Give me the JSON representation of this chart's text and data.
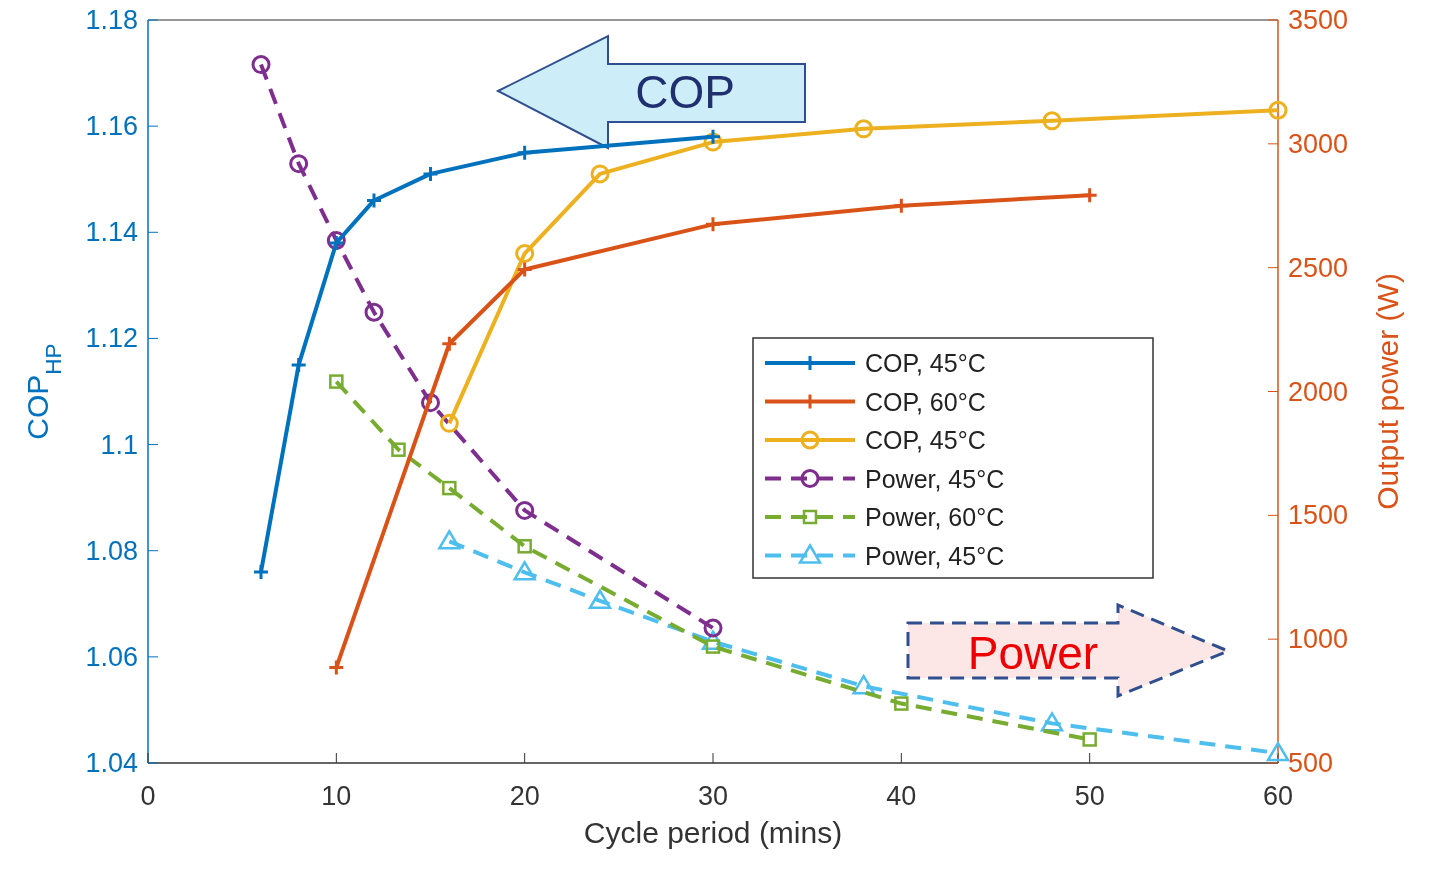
{
  "chart_data": {
    "type": "line",
    "xlabel": "Cycle period (mins)",
    "ylabel": "COP$_{HP}$",
    "y2label": "Output power (W)",
    "xlim": [
      0,
      60
    ],
    "xticks": [
      0,
      10,
      20,
      30,
      40,
      50,
      60
    ],
    "ylim": [
      1.04,
      1.18
    ],
    "yticks": [
      1.04,
      1.06,
      1.08,
      1.1,
      1.12,
      1.14,
      1.16,
      1.18
    ],
    "y2lim": [
      500,
      3500
    ],
    "y2ticks": [
      500,
      1000,
      1500,
      2000,
      2500,
      3000,
      3500
    ],
    "grid": false,
    "legend": "right",
    "annotations": [
      "COP",
      "Power"
    ],
    "series": [
      {
        "name": "COP, 45°C",
        "color": "#0072bd",
        "marker": "cross",
        "line_style": "solid",
        "x": [
          6,
          8,
          10,
          12,
          15,
          20,
          30
        ],
        "values": [
          1.076,
          1.115,
          1.138,
          1.146,
          1.151,
          1.155,
          1.158
        ]
      },
      {
        "name": "COP, 60°C",
        "color": "#d95319",
        "marker": "cross",
        "line_style": "solid",
        "x": [
          10,
          16,
          20,
          30,
          40,
          50
        ],
        "values": [
          1.058,
          1.119,
          1.133,
          1.1415,
          1.145,
          1.147
        ]
      },
      {
        "name": "COP, 45°C",
        "color": "#edb120",
        "marker": "circle",
        "line_style": "solid",
        "x": [
          16,
          20,
          24,
          30,
          38,
          48,
          60
        ],
        "values": [
          1.104,
          1.136,
          1.151,
          1.157,
          1.1595,
          1.161,
          1.163
        ]
      },
      {
        "name": "Power, 45°C",
        "color": "#7e2f8e",
        "marker": "circle",
        "line_style": "dashed",
        "axis": "y2",
        "x": [
          6,
          8,
          10,
          12,
          15,
          20,
          30
        ],
        "values": [
          3320,
          2920,
          2610,
          2320,
          1955,
          1520,
          1045
        ]
      },
      {
        "name": "Power, 60°C",
        "color": "#77ac30",
        "marker": "square",
        "line_style": "dashed",
        "axis": "y2",
        "x": [
          10,
          13.3,
          16,
          20,
          30,
          40,
          50
        ],
        "values": [
          2040,
          1765,
          1610,
          1375,
          970,
          740,
          595
        ]
      },
      {
        "name": "Power, 45°C",
        "color": "#4dbeee",
        "marker": "triangle",
        "line_style": "dashed",
        "axis": "y2",
        "x": [
          16,
          20,
          24,
          30,
          38,
          48,
          60
        ],
        "values": [
          1395,
          1270,
          1155,
          990,
          810,
          660,
          540
        ]
      }
    ]
  }
}
